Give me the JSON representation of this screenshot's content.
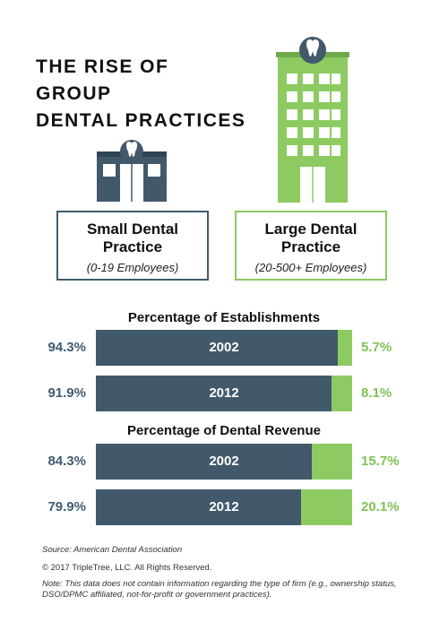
{
  "title": {
    "line1": "THE RISE OF GROUP",
    "line2": "DENTAL PRACTICES"
  },
  "icons": {
    "small_building": "small-building-icon",
    "large_building": "large-building-icon",
    "tooth": "tooth-icon"
  },
  "colors": {
    "small": "#41596b",
    "large": "#8dcb62"
  },
  "legend": {
    "small": {
      "name_line1": "Small Dental",
      "name_line2": "Practice",
      "employees": "(0-19 Employees)"
    },
    "large": {
      "name_line1": "Large Dental",
      "name_line2": "Practice",
      "employees": "(20-500+ Employees)"
    }
  },
  "chart_data": [
    {
      "type": "bar",
      "stacked": true,
      "orientation": "horizontal",
      "title": "Percentage of Establishments",
      "categories": [
        "2002",
        "2012"
      ],
      "series": [
        {
          "name": "Small Dental Practice",
          "values": [
            94.3,
            91.9
          ],
          "labels": [
            "94.3%",
            "91.9%"
          ]
        },
        {
          "name": "Large Dental Practice",
          "values": [
            5.7,
            8.1
          ],
          "labels": [
            "5.7%",
            "8.1%"
          ]
        }
      ],
      "xlim": [
        0,
        100
      ]
    },
    {
      "type": "bar",
      "stacked": true,
      "orientation": "horizontal",
      "title": "Percentage of Dental Revenue",
      "categories": [
        "2002",
        "2012"
      ],
      "series": [
        {
          "name": "Small Dental Practice",
          "values": [
            84.3,
            79.9
          ],
          "labels": [
            "84.3%",
            "79.9%"
          ]
        },
        {
          "name": "Large Dental Practice",
          "values": [
            15.7,
            20.1
          ],
          "labels": [
            "15.7%",
            "20.1%"
          ]
        }
      ],
      "xlim": [
        0,
        100
      ]
    }
  ],
  "footer": {
    "source": "Source: American Dental Association",
    "copyright": "© 2017 TripleTree, LLC. All Rights Reserved.",
    "note": "Note: This data does not contain information regarding the type of firm (e.g., ownership status, DSO/DPMC affiliated, not-for-profit or government practices)."
  }
}
